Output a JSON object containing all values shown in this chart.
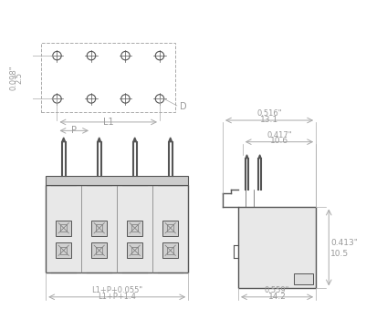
{
  "bg_color": "#ffffff",
  "line_color": "#555555",
  "dim_color": "#aaaaaa",
  "dim_text_color": "#999999",
  "connector_color": "#cccccc",
  "connector_dark": "#888888",
  "pin_color": "#666666",
  "top_dim": "L1+P+1.4",
  "top_dim2": "L1+P+0.055\"",
  "side_dim_top": "14.2",
  "side_dim_top2": "0.559\"",
  "side_dim_right1": "10.5",
  "side_dim_right2": "0.413\"",
  "side_dim_mid1": "10.6",
  "side_dim_mid2": "0.417\"",
  "side_dim_bot1": "13.1",
  "side_dim_bot2": "0.516\"",
  "bot_label_l1": "L1",
  "bot_label_p": "P",
  "bot_label_d": "D",
  "bot_dim_left": "2.5",
  "bot_dim_left2": "0.098\""
}
